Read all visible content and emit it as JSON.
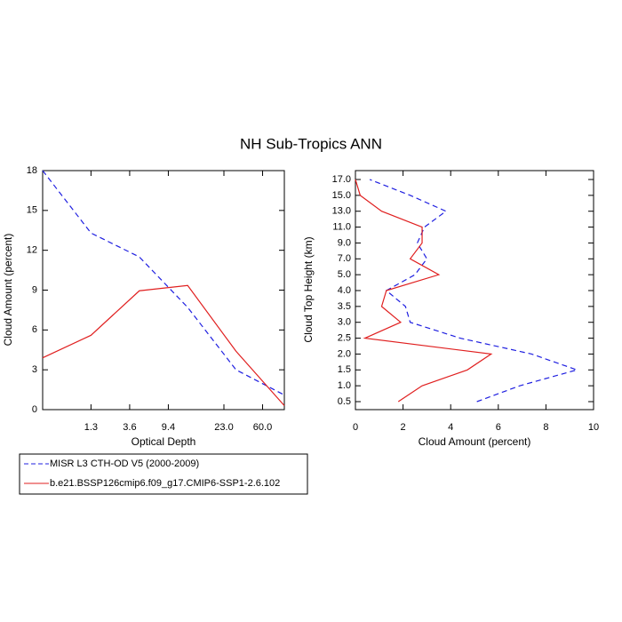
{
  "title": "NH Sub-Tropics ANN",
  "chart_data": [
    {
      "type": "line",
      "xlabel": "Optical Depth",
      "ylabel": "Cloud Amount (percent)",
      "x": [
        0,
        1,
        2,
        3,
        4,
        5
      ],
      "xlim": [
        0,
        5
      ],
      "xticks": [
        {
          "value": 1,
          "label": "1.3"
        },
        {
          "value": 1.8,
          "label": "3.6"
        },
        {
          "value": 2.6,
          "label": "9.4"
        },
        {
          "value": 3.75,
          "label": "23.0"
        },
        {
          "value": 4.55,
          "label": "60.0"
        }
      ],
      "ylim": [
        0,
        18
      ],
      "yticks": [
        0,
        3,
        6,
        9,
        12,
        15,
        18
      ],
      "series": [
        {
          "name": "MISR L3 CTH-OD V5 (2000-2009)",
          "color": "#1f1fe0",
          "dash": true,
          "values": [
            18,
            13.3,
            11.5,
            7.7,
            3.0,
            1.1
          ]
        },
        {
          "name": "b.e21.BSSP126cmip6.f09_g17.CMIP6-SSP1-2.6.102",
          "color": "#e01f1f",
          "dash": false,
          "values": [
            3.9,
            5.6,
            8.95,
            9.35,
            4.4,
            0.3
          ]
        }
      ]
    },
    {
      "type": "hline",
      "xlabel": "Cloud Amount (percent)",
      "ylabel": "Cloud Top Height (km)",
      "categories": [
        "0.5",
        "1.0",
        "1.5",
        "2.0",
        "2.5",
        "3.0",
        "3.5",
        "4.0",
        "5.0",
        "7.0",
        "9.0",
        "11.0",
        "13.0",
        "15.0",
        "17.0"
      ],
      "xlim": [
        0,
        10
      ],
      "xticks": [
        0,
        2,
        4,
        6,
        8,
        10
      ],
      "series": [
        {
          "color": "#1f1fe0",
          "dash": true,
          "values": [
            5.1,
            6.9,
            9.3,
            7.4,
            4.4,
            2.3,
            2.1,
            1.3,
            2.5,
            3.0,
            2.6,
            2.9,
            3.8,
            2.3,
            0.6
          ]
        },
        {
          "color": "#e01f1f",
          "dash": false,
          "values": [
            1.8,
            2.8,
            4.7,
            5.7,
            0.4,
            1.9,
            1.1,
            1.3,
            3.5,
            2.3,
            2.8,
            2.8,
            1.1,
            0.2,
            0.0
          ]
        }
      ]
    }
  ]
}
